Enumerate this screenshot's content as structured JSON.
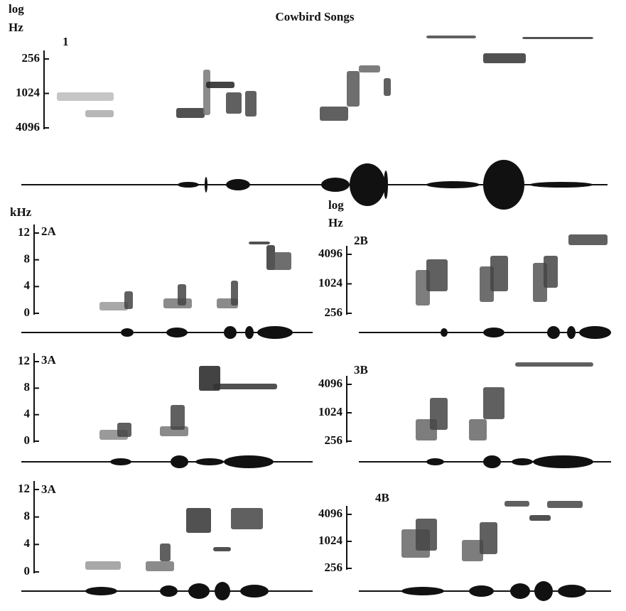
{
  "header": {
    "title": "Cowbird Songs"
  },
  "panels": [
    {
      "label": "1",
      "axis_label": [
        "log",
        "Hz"
      ],
      "ticks": [
        256,
        1024,
        4096
      ]
    },
    {
      "label": "2A",
      "axis_label": [
        "kHz"
      ],
      "ticks": [
        0,
        4,
        8,
        12
      ]
    },
    {
      "label": "2B",
      "axis_label": [
        "log",
        "Hz"
      ],
      "ticks": [
        256,
        1024,
        4096
      ]
    },
    {
      "label": "3A",
      "axis_label": [],
      "ticks": [
        0,
        4,
        8,
        12
      ]
    },
    {
      "label": "3B",
      "axis_label": [],
      "ticks": [
        256,
        1024,
        4096
      ]
    },
    {
      "label": "3A",
      "axis_label": [],
      "ticks": [
        0,
        4,
        8,
        12
      ]
    },
    {
      "label": "4B",
      "axis_label": [],
      "ticks": [
        256,
        1024,
        4096
      ]
    }
  ]
}
